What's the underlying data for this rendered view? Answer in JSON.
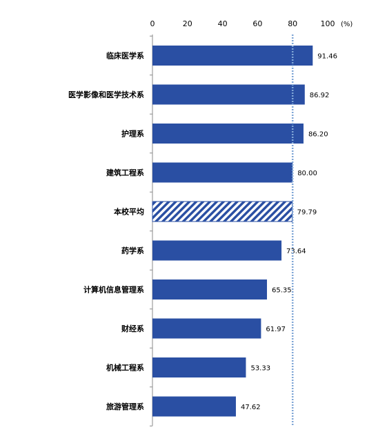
{
  "chart_data": {
    "type": "bar",
    "orientation": "horizontal",
    "unit_label": "(%)",
    "xlim": [
      0,
      100
    ],
    "x_ticks": [
      "0",
      "20",
      "40",
      "60",
      "80",
      "100"
    ],
    "reference_line": 80,
    "categories": [
      "临床医学系",
      "医学影像和医学技术系",
      "护理系",
      "建筑工程系",
      "本校平均",
      "药学系",
      "计算机信息管理系",
      "财经系",
      "机械工程系",
      "旅游管理系"
    ],
    "values": [
      91.46,
      86.92,
      86.2,
      80.0,
      79.79,
      73.64,
      65.35,
      61.97,
      53.33,
      47.62
    ],
    "value_labels": [
      "91.46",
      "86.92",
      "86.20",
      "80.00",
      "79.79",
      "73.64",
      "65.35",
      "61.97",
      "53.33",
      "47.62"
    ],
    "highlight_category": "本校平均",
    "bar_color": "#2a4fa3",
    "reference_line_color": "#7fa6d6",
    "grid": false,
    "legend": "none"
  }
}
